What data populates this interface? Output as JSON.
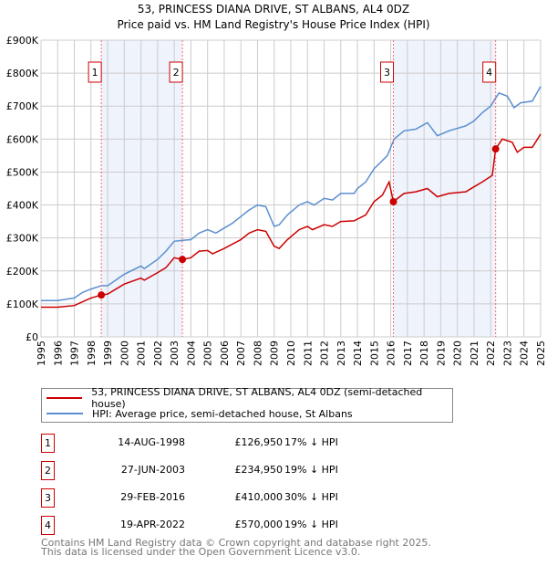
{
  "chart_data": {
    "type": "line",
    "title": "53, PRINCESS DIANA DRIVE, ST ALBANS, AL4 0DZ",
    "subtitle": "Price paid vs. HM Land Registry's House Price Index (HPI)",
    "xlim": [
      1995,
      2025
    ],
    "ylim": [
      0,
      900000
    ],
    "y_ticks": [
      {
        "v": 0,
        "label": "£0"
      },
      {
        "v": 100000,
        "label": "£100K"
      },
      {
        "v": 200000,
        "label": "£200K"
      },
      {
        "v": 300000,
        "label": "£300K"
      },
      {
        "v": 400000,
        "label": "£400K"
      },
      {
        "v": 500000,
        "label": "£500K"
      },
      {
        "v": 600000,
        "label": "£600K"
      },
      {
        "v": 700000,
        "label": "£700K"
      },
      {
        "v": 800000,
        "label": "£800K"
      },
      {
        "v": 900000,
        "label": "£900K"
      }
    ],
    "x_ticks": [
      "1995",
      "1996",
      "1997",
      "1998",
      "1999",
      "2000",
      "2001",
      "2002",
      "2003",
      "2004",
      "2005",
      "2006",
      "2007",
      "2008",
      "2009",
      "2010",
      "2011",
      "2012",
      "2013",
      "2014",
      "2015",
      "2016",
      "2017",
      "2018",
      "2019",
      "2020",
      "2021",
      "2022",
      "2023",
      "2024",
      "2025"
    ],
    "grid": true,
    "colors": {
      "property": "#cc0000",
      "hpi": "#5b8fd0",
      "shade": "#eef3fc",
      "marker_border": "#cc0000"
    },
    "series": [
      {
        "name": "53, PRINCESS DIANA DRIVE, ST ALBANS, AL4 0DZ (semi-detached house)",
        "key": "property",
        "x": [
          1995,
          1996,
          1997,
          1998,
          1998.62,
          1999,
          2000,
          2001,
          2001.2,
          2002,
          2002.5,
          2003,
          2003.49,
          2004,
          2004.5,
          2005,
          2005.3,
          2006,
          2007,
          2007.5,
          2008,
          2008.5,
          2009,
          2009.3,
          2009.8,
          2010.5,
          2011,
          2011.3,
          2012,
          2012.5,
          2013,
          2013.8,
          2014.5,
          2015,
          2015.5,
          2015.9,
          2016.16,
          2016.8,
          2017.5,
          2018.2,
          2018.8,
          2019.5,
          2020.5,
          2021,
          2021.5,
          2022.1,
          2022.3,
          2022.7,
          2023.3,
          2023.6,
          2024,
          2024.5,
          2025
        ],
        "y": [
          90000,
          90000,
          95000,
          118000,
          126950,
          130000,
          160000,
          178000,
          172000,
          195000,
          210000,
          240000,
          234950,
          240000,
          260000,
          262000,
          252000,
          268000,
          295000,
          315000,
          325000,
          320000,
          275000,
          268000,
          295000,
          325000,
          335000,
          325000,
          340000,
          335000,
          350000,
          352000,
          370000,
          410000,
          430000,
          470000,
          410000,
          435000,
          440000,
          450000,
          425000,
          435000,
          440000,
          455000,
          470000,
          490000,
          570000,
          600000,
          590000,
          560000,
          575000,
          575000,
          615000
        ]
      },
      {
        "name": "HPI: Average price, semi-detached house, St Albans",
        "key": "hpi",
        "x": [
          1995,
          1996,
          1997,
          1997.5,
          1998,
          1998.62,
          1999,
          2000,
          2001,
          2001.2,
          2002,
          2002.5,
          2003,
          2003.5,
          2004,
          2004.5,
          2005,
          2005.5,
          2006,
          2006.5,
          2007,
          2007.5,
          2008,
          2008.5,
          2009,
          2009.3,
          2009.8,
          2010.5,
          2011,
          2011.4,
          2012,
          2012.5,
          2013,
          2013.8,
          2014,
          2014.5,
          2015,
          2015.5,
          2015.8,
          2016.2,
          2016.8,
          2017.5,
          2018.2,
          2018.8,
          2019.5,
          2020.5,
          2021,
          2021.5,
          2022,
          2022.5,
          2023,
          2023.4,
          2023.8,
          2024.5,
          2025
        ],
        "y": [
          110000,
          110000,
          118000,
          135000,
          145000,
          155000,
          155000,
          190000,
          215000,
          207000,
          235000,
          260000,
          290000,
          293000,
          295000,
          315000,
          325000,
          315000,
          330000,
          345000,
          365000,
          385000,
          400000,
          395000,
          335000,
          340000,
          370000,
          400000,
          410000,
          400000,
          420000,
          415000,
          435000,
          435000,
          450000,
          470000,
          510000,
          535000,
          550000,
          600000,
          625000,
          630000,
          650000,
          610000,
          625000,
          640000,
          655000,
          680000,
          700000,
          740000,
          730000,
          695000,
          710000,
          715000,
          760000
        ]
      }
    ],
    "sales": [
      {
        "label": "1",
        "date": "14-AUG-1998",
        "price": "£126,950",
        "hpi": "17% ↓ HPI",
        "x": 1998.62,
        "y": 126950
      },
      {
        "label": "2",
        "date": "27-JUN-2003",
        "price": "£234,950",
        "hpi": "19% ↓ HPI",
        "x": 2003.49,
        "y": 234950
      },
      {
        "label": "3",
        "date": "29-FEB-2016",
        "price": "£410,000",
        "hpi": "30% ↓ HPI",
        "x": 2016.16,
        "y": 410000
      },
      {
        "label": "4",
        "date": "19-APR-2022",
        "price": "£570,000",
        "hpi": "19% ↓ HPI",
        "x": 2022.3,
        "y": 570000
      }
    ],
    "legend_position": "below"
  },
  "footer": {
    "line1": "Contains HM Land Registry data © Crown copyright and database right 2025.",
    "line2": "This data is licensed under the Open Government Licence v3.0."
  }
}
